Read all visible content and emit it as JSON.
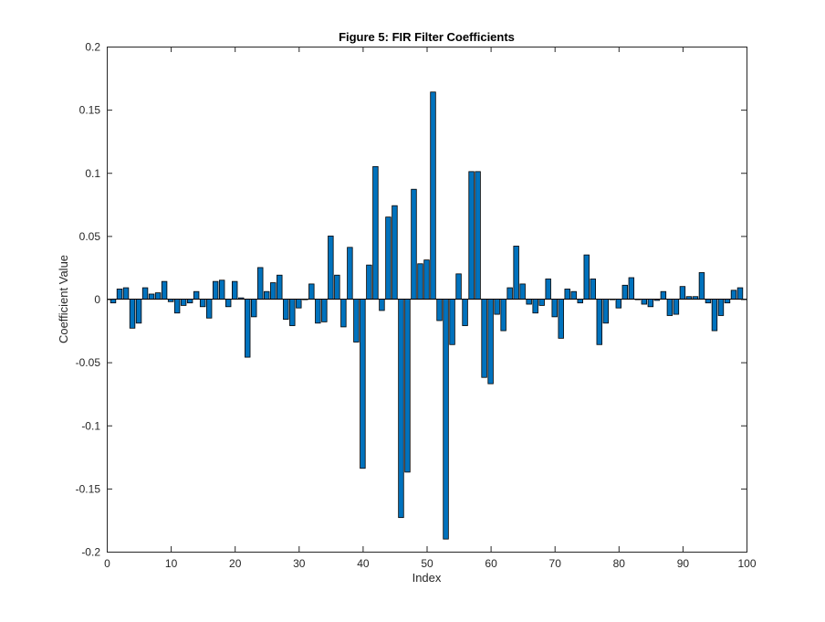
{
  "chart_data": {
    "type": "bar",
    "title": "Figure 5: FIR Filter Coefficients",
    "xlabel": "Index",
    "ylabel": "Coefficient Value",
    "xlim": [
      0,
      100
    ],
    "ylim": [
      -0.2,
      0.2
    ],
    "x_ticks": [
      0,
      10,
      20,
      30,
      40,
      50,
      60,
      70,
      80,
      90,
      100
    ],
    "y_ticks": [
      -0.2,
      -0.15,
      -0.1,
      -0.05,
      0,
      0.05,
      0.1,
      0.15,
      0.2
    ],
    "y_tick_labels": [
      "-0.2",
      "-0.15",
      "-0.1",
      "-0.05",
      "0",
      "0.05",
      "0.1",
      "0.15",
      "0.2"
    ],
    "grid": false,
    "bar_color": "#0072bd",
    "edge_color": "#000000",
    "x": [
      1,
      2,
      3,
      4,
      5,
      6,
      7,
      8,
      9,
      10,
      11,
      12,
      13,
      14,
      15,
      16,
      17,
      18,
      19,
      20,
      21,
      22,
      23,
      24,
      25,
      26,
      27,
      28,
      29,
      30,
      31,
      32,
      33,
      34,
      35,
      36,
      37,
      38,
      39,
      40,
      41,
      42,
      43,
      44,
      45,
      46,
      47,
      48,
      49,
      50,
      51,
      52,
      53,
      54,
      55,
      56,
      57,
      58,
      59,
      60,
      61,
      62,
      63,
      64,
      65,
      66,
      67,
      68,
      69,
      70,
      71,
      72,
      73,
      74,
      75,
      76,
      77,
      78,
      79,
      80,
      81,
      82,
      83,
      84,
      85,
      86,
      87,
      88,
      89,
      90,
      91,
      92,
      93,
      94,
      95,
      96,
      97,
      98,
      99
    ],
    "values": [
      -0.003,
      0.008,
      0.009,
      -0.023,
      -0.019,
      0.009,
      0.004,
      0.005,
      0.014,
      -0.002,
      -0.011,
      -0.005,
      -0.003,
      0.006,
      -0.006,
      -0.015,
      0.014,
      0.015,
      -0.006,
      0.014,
      0.001,
      -0.046,
      -0.014,
      0.025,
      0.006,
      0.013,
      0.019,
      -0.016,
      -0.021,
      -0.007,
      0.0,
      0.012,
      -0.019,
      -0.018,
      0.05,
      0.019,
      -0.022,
      0.041,
      -0.034,
      -0.134,
      0.027,
      0.105,
      -0.009,
      0.065,
      0.074,
      -0.173,
      -0.137,
      0.087,
      0.028,
      0.031,
      0.164,
      -0.017,
      -0.19,
      -0.036,
      0.02,
      -0.021,
      0.101,
      0.101,
      -0.062,
      -0.067,
      -0.012,
      -0.025,
      0.009,
      0.042,
      0.012,
      -0.004,
      -0.011,
      -0.005,
      0.016,
      -0.014,
      -0.031,
      0.008,
      0.006,
      -0.003,
      0.035,
      0.016,
      -0.036,
      -0.019,
      0.0,
      -0.007,
      0.011,
      0.017,
      0.0,
      -0.004,
      -0.006,
      -0.001,
      0.006,
      -0.013,
      -0.012,
      0.01,
      0.002,
      0.002,
      0.021,
      -0.003,
      -0.025,
      -0.013,
      -0.003,
      0.007,
      0.009
    ]
  }
}
